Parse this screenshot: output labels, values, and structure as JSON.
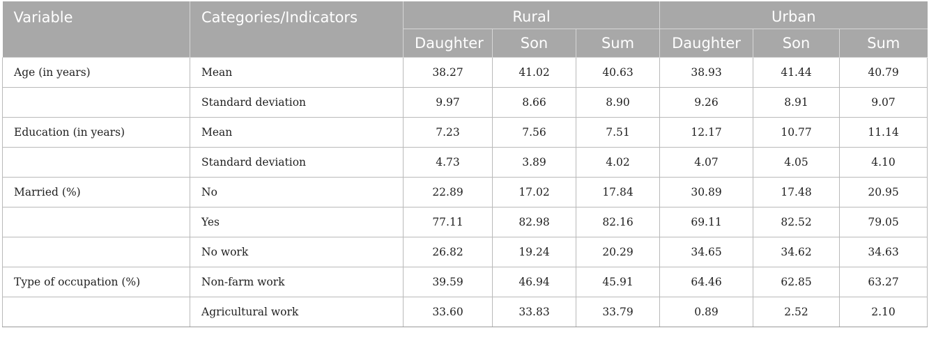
{
  "table": {
    "headers": {
      "variable": "Variable",
      "categories": "Categories/Indicators",
      "groups": [
        "Rural",
        "Urban"
      ],
      "subcolumns": [
        "Daughter",
        "Son",
        "Sum",
        "Daughter",
        "Son",
        "Sum"
      ]
    },
    "rows": [
      {
        "variable": "Age (in years)",
        "category": "Mean",
        "values": [
          "38.27",
          "41.02",
          "40.63",
          "38.93",
          "41.44",
          "40.79"
        ]
      },
      {
        "variable": "",
        "category": "Standard deviation",
        "values": [
          "9.97",
          "8.66",
          "8.90",
          "9.26",
          "8.91",
          "9.07"
        ]
      },
      {
        "variable": "Education (in years)",
        "category": "Mean",
        "values": [
          "7.23",
          "7.56",
          "7.51",
          "12.17",
          "10.77",
          "11.14"
        ]
      },
      {
        "variable": "",
        "category": "Standard deviation",
        "values": [
          "4.73",
          "3.89",
          "4.02",
          "4.07",
          "4.05",
          "4.10"
        ]
      },
      {
        "variable": "Married (%)",
        "category": "No",
        "values": [
          "22.89",
          "17.02",
          "17.84",
          "30.89",
          "17.48",
          "20.95"
        ]
      },
      {
        "variable": "",
        "category": "Yes",
        "values": [
          "77.11",
          "82.98",
          "82.16",
          "69.11",
          "82.52",
          "79.05"
        ]
      },
      {
        "variable": "",
        "category": "No work",
        "values": [
          "26.82",
          "19.24",
          "20.29",
          "34.65",
          "34.62",
          "34.63"
        ]
      },
      {
        "variable": "Type of occupation (%)",
        "category": "Non-farm work",
        "values": [
          "39.59",
          "46.94",
          "45.91",
          "64.46",
          "62.85",
          "63.27"
        ]
      },
      {
        "variable": "",
        "category": "Agricultural work",
        "values": [
          "33.60",
          "33.83",
          "33.79",
          "0.89",
          "2.52",
          "2.10"
        ]
      }
    ]
  }
}
